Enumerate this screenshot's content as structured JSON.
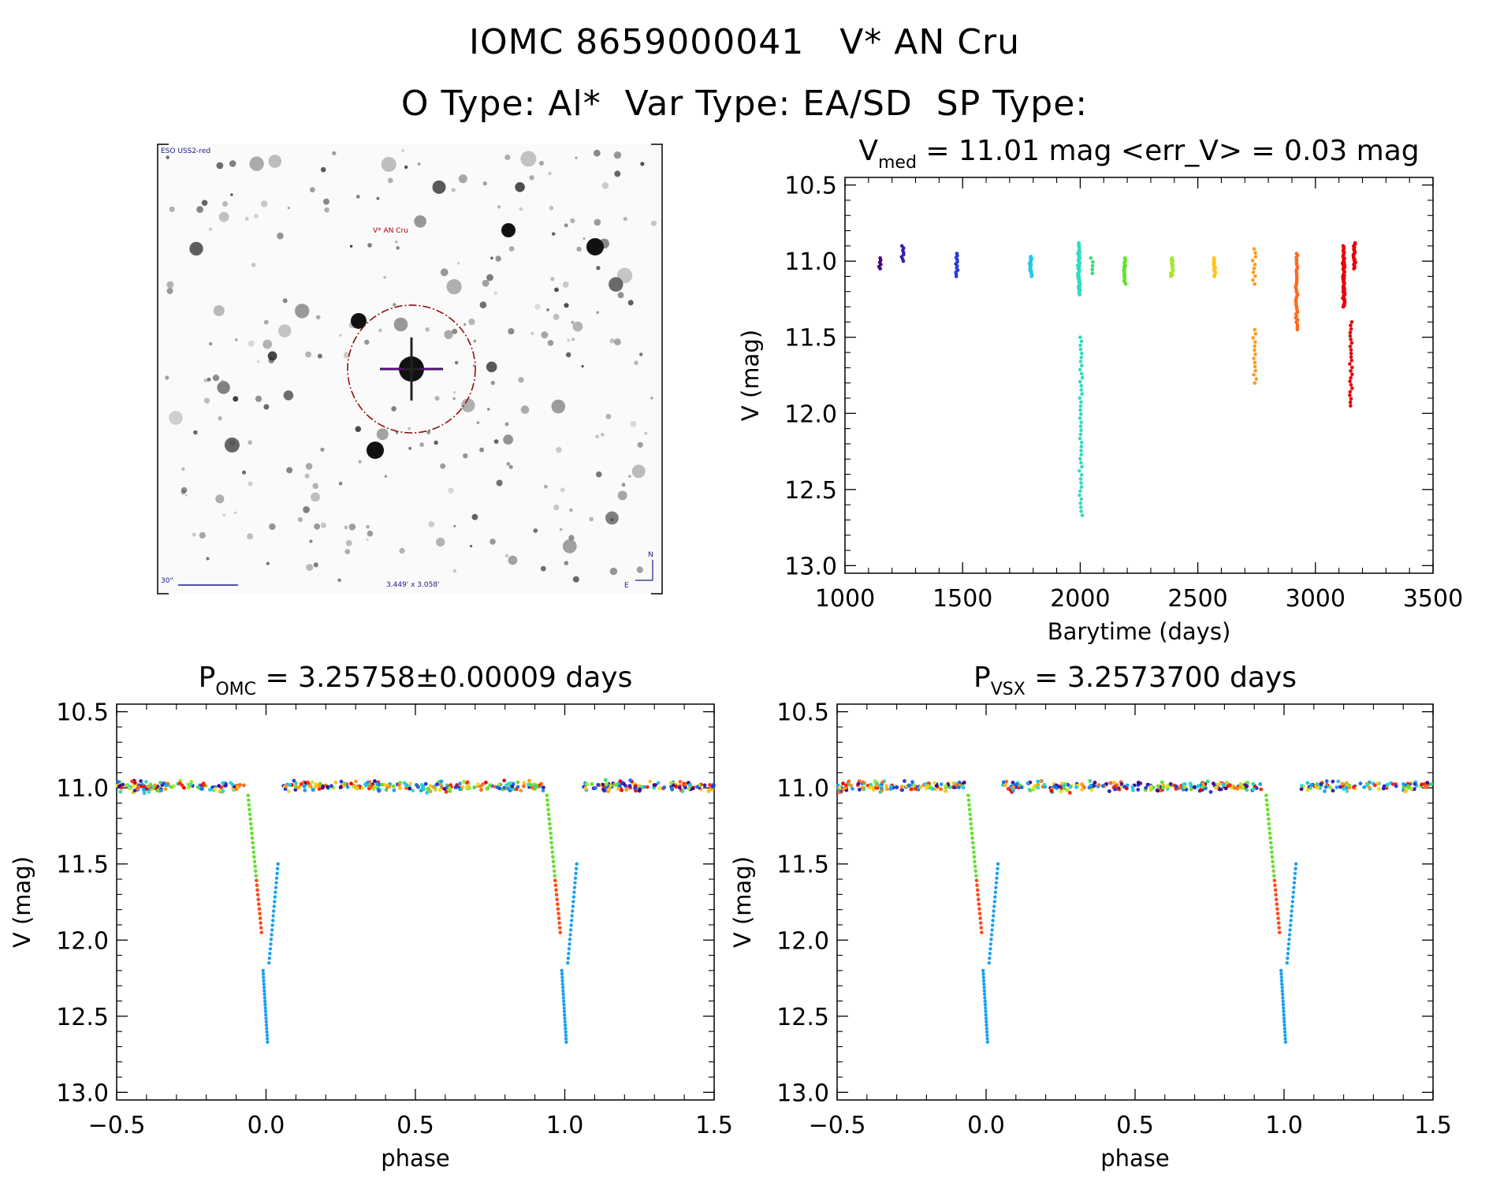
{
  "header": {
    "line1": "IOMC 8659000041   V* AN Cru",
    "line2": "O Type: Al*  Var Type: EA/SD  SP Type:"
  },
  "finder": {
    "survey_label": "ESO USS2-red",
    "target_label": "V* AN Cru",
    "scale_label": "30\"",
    "fov_label": "3.449' x 3.058'",
    "north": "N",
    "east": "E"
  },
  "palette": [
    "#4b0082",
    "#3a1fb0",
    "#2a3bd8",
    "#1b6ff0",
    "#1aa0f0",
    "#22c8e8",
    "#30dcc0",
    "#3cd878",
    "#64e030",
    "#a6e62a",
    "#e8e020",
    "#ffc21a",
    "#ff9a1c",
    "#ff6a1e",
    "#ff2a10",
    "#e8000a"
  ],
  "chart_data": [
    {
      "id": "lightcurve",
      "type": "scatter",
      "title_main": "V",
      "title_sub": "med",
      "title_rest": " = 11.01 mag <err_V> = 0.03 mag",
      "xlabel": "Barytime (days)",
      "ylabel": "V (mag)",
      "xlim": [
        1000,
        3500
      ],
      "ylim": [
        13.05,
        10.45
      ],
      "xticks": [
        1000,
        1500,
        2000,
        2500,
        3000,
        3500
      ],
      "xtick_labels": [
        "1000",
        "1500",
        "2000",
        "2500",
        "3000",
        "3500"
      ],
      "yticks": [
        10.5,
        11.0,
        11.5,
        12.0,
        12.5,
        13.0
      ],
      "ytick_labels": [
        "10.5",
        "11.0",
        "11.5",
        "12.0",
        "12.5",
        "13.0"
      ],
      "median_mag": 11.01,
      "mean_err": 0.03,
      "clusters": [
        {
          "t": 1150,
          "mag": [
            10.98,
            11.05
          ],
          "n": 6
        },
        {
          "t": 1245,
          "mag": [
            10.9,
            11.0
          ],
          "n": 8
        },
        {
          "t": 1475,
          "mag": [
            10.95,
            11.1
          ],
          "n": 12
        },
        {
          "t": 1790,
          "mag": [
            10.97,
            11.1
          ],
          "n": 18
        },
        {
          "t": 1995,
          "mag": [
            10.88,
            11.22
          ],
          "n": 45
        },
        {
          "t": 2003,
          "mag": [
            11.5,
            12.67
          ],
          "n": 45
        },
        {
          "t": 2050,
          "mag": [
            10.98,
            11.08
          ],
          "n": 5
        },
        {
          "t": 2190,
          "mag": [
            10.98,
            11.15
          ],
          "n": 18
        },
        {
          "t": 2390,
          "mag": [
            10.98,
            11.1
          ],
          "n": 14
        },
        {
          "t": 2570,
          "mag": [
            10.98,
            11.1
          ],
          "n": 14
        },
        {
          "t": 2740,
          "mag": [
            10.92,
            11.15
          ],
          "n": 10
        },
        {
          "t": 2742,
          "mag": [
            11.45,
            11.8
          ],
          "n": 14
        },
        {
          "t": 2920,
          "mag": [
            10.95,
            11.45
          ],
          "n": 40
        },
        {
          "t": 3120,
          "mag": [
            10.9,
            11.3
          ],
          "n": 50
        },
        {
          "t": 3165,
          "mag": [
            10.88,
            11.05
          ],
          "n": 25
        },
        {
          "t": 3150,
          "mag": [
            11.4,
            11.95
          ],
          "n": 25
        }
      ]
    },
    {
      "id": "phase-omc",
      "type": "scatter",
      "title_main": "P",
      "title_sub": "OMC",
      "title_rest": " = 3.25758±0.00009 days",
      "xlabel": "phase",
      "ylabel": "V (mag)",
      "xlim": [
        -0.5,
        1.5
      ],
      "ylim": [
        13.05,
        10.45
      ],
      "xticks": [
        -0.5,
        0.0,
        0.5,
        1.0,
        1.5
      ],
      "xtick_labels": [
        "−0.5",
        "0.0",
        "0.5",
        "1.0",
        "1.5"
      ],
      "yticks": [
        10.5,
        11.0,
        11.5,
        12.0,
        12.5,
        13.0
      ],
      "ytick_labels": [
        "10.5",
        "11.0",
        "11.5",
        "12.0",
        "12.5",
        "13.0"
      ],
      "period_days": 3.25758,
      "period_err": 9e-05,
      "baseline_mag": 11.0,
      "eclipse_phase": 0.0,
      "eclipse_min_mag": 12.67
    },
    {
      "id": "phase-vsx",
      "type": "scatter",
      "title_main": "P",
      "title_sub": "VSX",
      "title_rest": " = 3.2573700 days",
      "xlabel": "phase",
      "ylabel": "V (mag)",
      "xlim": [
        -0.5,
        1.5
      ],
      "ylim": [
        13.05,
        10.45
      ],
      "xticks": [
        -0.5,
        0.0,
        0.5,
        1.0,
        1.5
      ],
      "xtick_labels": [
        "−0.5",
        "0.0",
        "0.5",
        "1.0",
        "1.5"
      ],
      "yticks": [
        10.5,
        11.0,
        11.5,
        12.0,
        12.5,
        13.0
      ],
      "ytick_labels": [
        "10.5",
        "11.0",
        "11.5",
        "12.0",
        "12.5",
        "13.0"
      ],
      "period_days": 3.25737,
      "baseline_mag": 11.0,
      "eclipse_phase": 0.0,
      "eclipse_min_mag": 12.67
    }
  ]
}
